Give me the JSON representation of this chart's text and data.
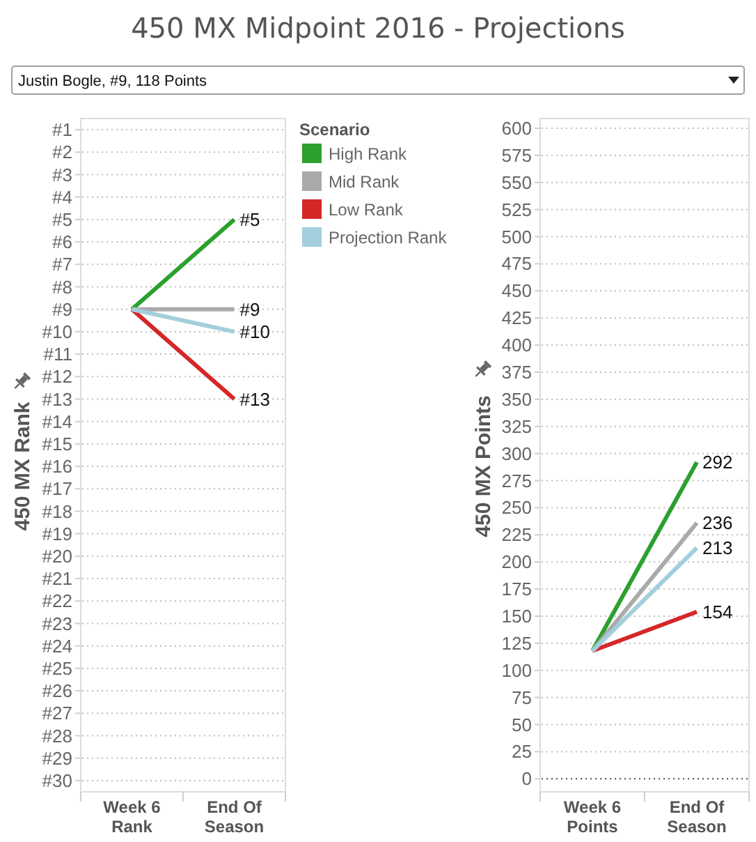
{
  "chart_data": [
    {
      "type": "line",
      "title": "450 MX Midpoint 2016 - Projections",
      "subtitle": "Justin Bogle, #9, 118 Points",
      "ylabel": "450 MX Rank",
      "legend_title": "Scenario",
      "legend": "right",
      "grid": "y",
      "categories": [
        "Week 6 Rank",
        "End Of Season"
      ],
      "series": [
        {
          "name": "High Rank",
          "color": "#2ca02c",
          "values": [
            9,
            5
          ],
          "value_labels": [
            null,
            "#5"
          ]
        },
        {
          "name": "Mid Rank",
          "color": "#aaaaaa",
          "values": [
            9,
            9
          ],
          "value_labels": [
            null,
            "#9"
          ]
        },
        {
          "name": "Low Rank",
          "color": "#d62728",
          "values": [
            9,
            13
          ],
          "value_labels": [
            null,
            "#13"
          ]
        },
        {
          "name": "Projection Rank",
          "color": "#a3cfdc",
          "values": [
            9,
            10
          ],
          "value_labels": [
            null,
            "#10"
          ]
        }
      ],
      "ylim": [
        30.5,
        0.5
      ],
      "yticks": [
        {
          "value": 1,
          "label": "#1"
        },
        {
          "value": 2,
          "label": "#2"
        },
        {
          "value": 3,
          "label": "#3"
        },
        {
          "value": 4,
          "label": "#4"
        },
        {
          "value": 5,
          "label": "#5"
        },
        {
          "value": 6,
          "label": "#6"
        },
        {
          "value": 7,
          "label": "#7"
        },
        {
          "value": 8,
          "label": "#8"
        },
        {
          "value": 9,
          "label": "#9"
        },
        {
          "value": 10,
          "label": "#10"
        },
        {
          "value": 11,
          "label": "#11"
        },
        {
          "value": 12,
          "label": "#12"
        },
        {
          "value": 13,
          "label": "#13"
        },
        {
          "value": 14,
          "label": "#14"
        },
        {
          "value": 15,
          "label": "#15"
        },
        {
          "value": 16,
          "label": "#16"
        },
        {
          "value": 17,
          "label": "#17"
        },
        {
          "value": 18,
          "label": "#18"
        },
        {
          "value": 19,
          "label": "#19"
        },
        {
          "value": 20,
          "label": "#20"
        },
        {
          "value": 21,
          "label": "#21"
        },
        {
          "value": 22,
          "label": "#22"
        },
        {
          "value": 23,
          "label": "#23"
        },
        {
          "value": 24,
          "label": "#24"
        },
        {
          "value": 25,
          "label": "#25"
        },
        {
          "value": 26,
          "label": "#26"
        },
        {
          "value": 27,
          "label": "#27"
        },
        {
          "value": 28,
          "label": "#28"
        },
        {
          "value": 29,
          "label": "#29"
        },
        {
          "value": 30,
          "label": "#30"
        }
      ]
    },
    {
      "type": "line",
      "ylabel": "450 MX Points",
      "grid": "y",
      "categories": [
        "Week 6 Points",
        "End Of Season"
      ],
      "series": [
        {
          "color": "#2ca02c",
          "values": [
            118,
            292
          ],
          "value_labels": [
            null,
            "292"
          ]
        },
        {
          "color": "#aaaaaa",
          "values": [
            118,
            236
          ],
          "value_labels": [
            null,
            "236"
          ]
        },
        {
          "color": "#d62728",
          "values": [
            118,
            154
          ],
          "value_labels": [
            null,
            "154"
          ]
        },
        {
          "color": "#a3cfdc",
          "values": [
            118,
            213
          ],
          "value_labels": [
            null,
            "213"
          ]
        }
      ],
      "ylim": [
        -12,
        609
      ],
      "yticks": [
        0,
        25,
        50,
        75,
        100,
        125,
        150,
        175,
        200,
        225,
        250,
        275,
        300,
        325,
        350,
        375,
        400,
        425,
        450,
        475,
        500,
        525,
        550,
        575,
        600
      ],
      "ref_lines": [
        {
          "axis": "y",
          "value": 0,
          "color": "#555555",
          "line_style": "dotted"
        }
      ]
    }
  ]
}
